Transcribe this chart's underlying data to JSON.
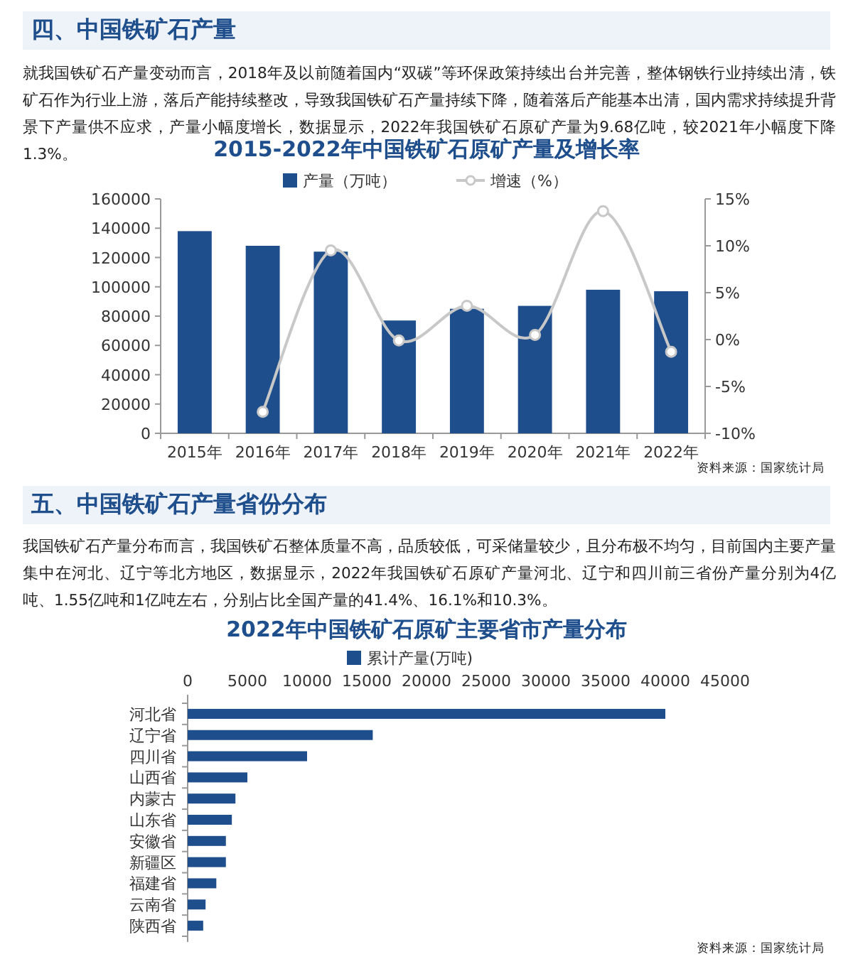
{
  "chart_data": [
    {
      "type": "bar",
      "title": "2015-2022年中国铁矿石原矿产量及增长率",
      "annotations": [
        "四、中国铁矿石产量",
        "就我国铁矿石产量变动而言，2018年及以前随着国内“双碳”等环保政策持续出台并完善，整体钢铁行业持续出清，铁矿石作为行业上游，落后产能持续整改，导致我国铁矿石产量持续下降，随着落后产能基本出清，国内需求持续提升背景下产量供不应求，产量小幅度增长，数据显示，2022年我国铁矿石原矿产量为9.68亿吨，较2021年小幅度下降1.3%。",
        "资料来源：国家统计局"
      ],
      "categories": [
        "2015年",
        "2016年",
        "2017年",
        "2018年",
        "2019年",
        "2020年",
        "2021年",
        "2022年"
      ],
      "series": [
        {
          "name": "产量（万吨）",
          "color": "#1f4e8c",
          "values": [
            138000,
            128000,
            124000,
            77000,
            85000,
            87000,
            98000,
            97000
          ]
        },
        {
          "name": "增速（%）",
          "type": "line",
          "axis": "y2",
          "color": "#c8c8c8",
          "marker": "circle",
          "values": [
            null,
            -7.7,
            9.5,
            -0.1,
            3.6,
            0.5,
            13.7,
            -1.3
          ]
        }
      ],
      "ylim": [
        0,
        160000
      ],
      "yticks": [
        0,
        20000,
        40000,
        60000,
        80000,
        100000,
        120000,
        140000,
        160000
      ],
      "y2lim": [
        -10,
        15
      ],
      "y2ticks": [
        {
          "value": -10,
          "label": "-10%"
        },
        {
          "value": -5,
          "label": "-5%"
        },
        {
          "value": 0,
          "label": "0%"
        },
        {
          "value": 5,
          "label": "5%"
        },
        {
          "value": 10,
          "label": "10%"
        },
        {
          "value": 15,
          "label": "15%"
        }
      ],
      "legend": "top"
    },
    {
      "type": "bar",
      "orientation": "horizontal",
      "title": "2022年中国铁矿石原矿主要省市产量分布",
      "annotations": [
        "五、中国铁矿石产量省份分布",
        "我国铁矿石产量分布而言，我国铁矿石整体质量不高，品质较低，可采储量较少，且分布极不均匀，目前国内主要产量集中在河北、辽宁等北方地区，数据显示，2022年我国铁矿石原矿产量河北、辽宁和四川前三省份产量分别为4亿吨、1.55亿吨和1亿吨左右，分别占比全国产量的41.4%、16.1%和10.3%。",
        "资料来源：国家统计局"
      ],
      "categories": [
        "河北省",
        "辽宁省",
        "四川省",
        "山西省",
        "内蒙古",
        "山东省",
        "安徽省",
        "新疆区",
        "福建省",
        "云南省",
        "陕西省"
      ],
      "series": [
        {
          "name": "累计产量(万吨)",
          "color": "#1f4e8c",
          "values": [
            40000,
            15500,
            10000,
            5000,
            4000,
            3700,
            3200,
            3200,
            2400,
            1500,
            1300
          ]
        }
      ],
      "xlim": [
        0,
        45000
      ],
      "xticks": [
        0,
        5000,
        10000,
        15000,
        20000,
        25000,
        30000,
        35000,
        40000,
        45000
      ],
      "legend": "top"
    }
  ]
}
